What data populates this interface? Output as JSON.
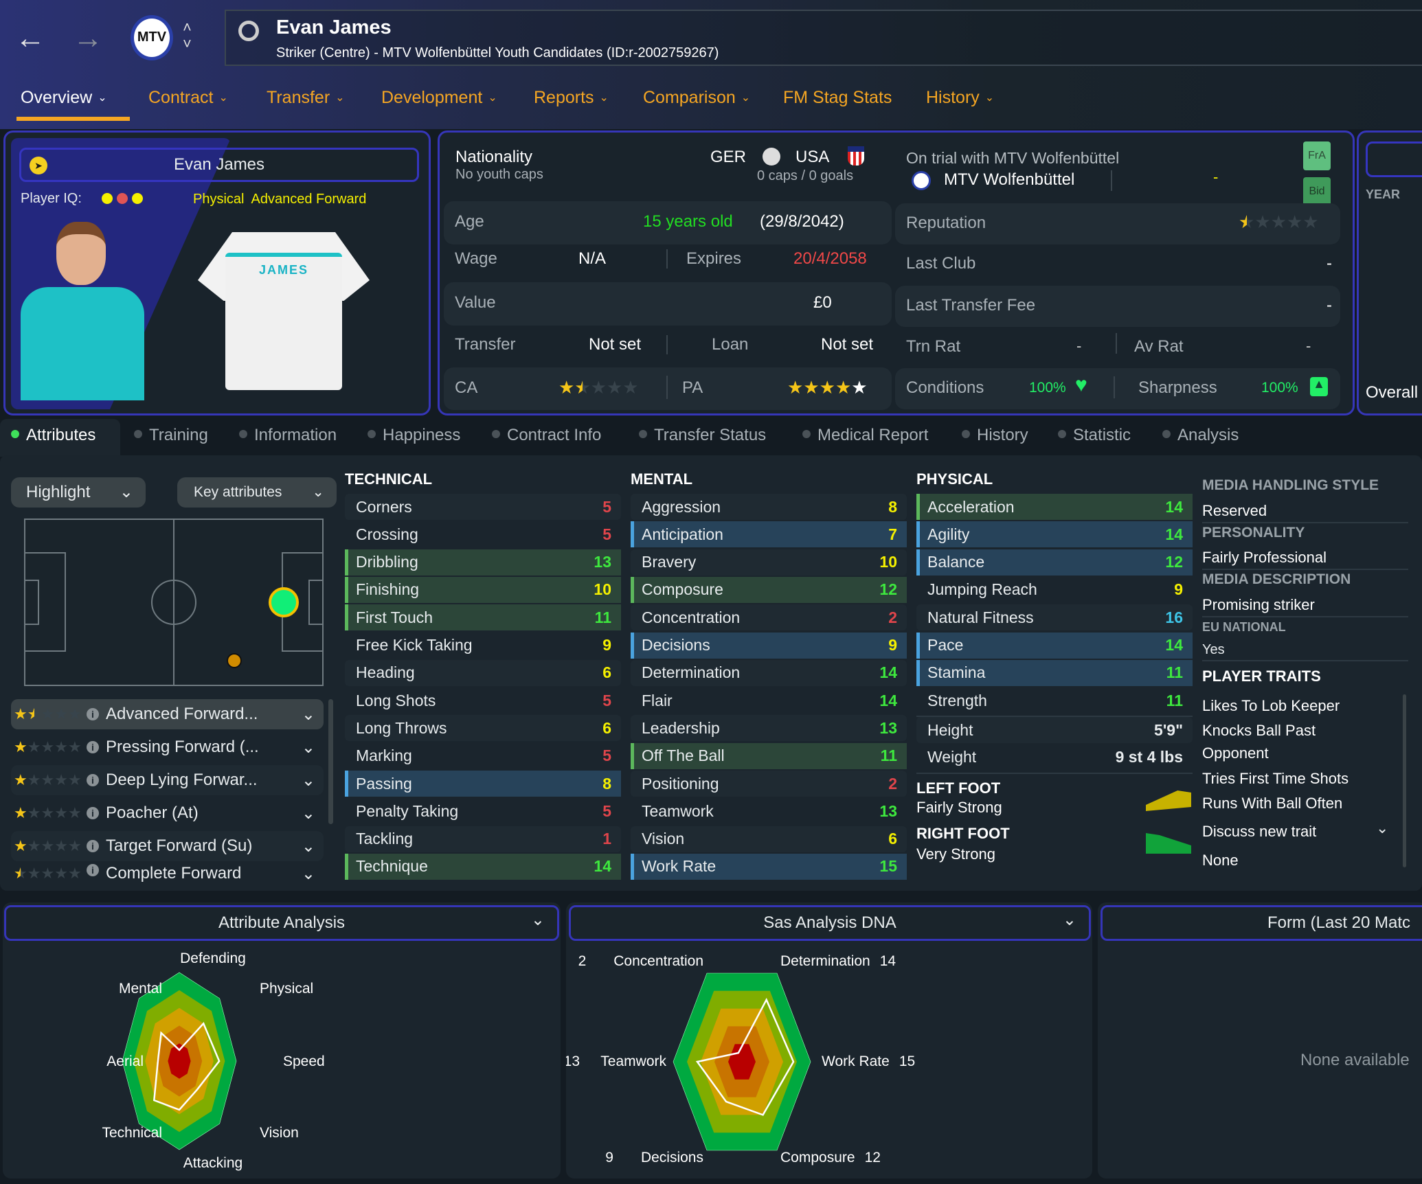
{
  "header": {
    "player_name": "Evan James",
    "subtitle": "Striker (Centre) - MTV Wolfenbüttel Youth Candidates (ID:r-2002759267)",
    "icons": [
      "back-arrow-icon",
      "forward-arrow-icon",
      "club-crest-icon",
      "up-down-chevron-icon",
      "search-icon"
    ]
  },
  "main_tabs": [
    {
      "label": "Overview",
      "active": true,
      "dropdown": true
    },
    {
      "label": "Contract",
      "dropdown": true
    },
    {
      "label": "Transfer",
      "dropdown": true
    },
    {
      "label": "Development",
      "dropdown": true
    },
    {
      "label": "Reports",
      "dropdown": true
    },
    {
      "label": "Comparison",
      "dropdown": true
    },
    {
      "label": "FM Stag Stats",
      "dropdown": false
    },
    {
      "label": "History",
      "dropdown": true
    }
  ],
  "profile": {
    "name": "Evan James",
    "player_iq_label": "Player IQ:",
    "player_iq_dots": [
      "#f5f000",
      "#e05555",
      "#f5f000"
    ],
    "role_label": "Physical  Advanced Forward",
    "shirt_name": "JAMES"
  },
  "details": {
    "nationality_label": "Nationality",
    "youth_caps": "No youth caps",
    "nation1": "GER",
    "nation2": "USA",
    "caps": "0 caps / 0 goals",
    "age_label": "Age",
    "age": "15 years old",
    "dob": "(29/8/2042)",
    "wage_label": "Wage",
    "wage": "N/A",
    "expires_label": "Expires",
    "expires": "20/4/2058",
    "value_label": "Value",
    "value": "£0",
    "transfer_label": "Transfer",
    "transfer": "Not set",
    "loan_label": "Loan",
    "loan": "Not set",
    "ca_label": "CA",
    "ca_stars": 1.5,
    "pa_label": "PA",
    "pa_stars": 4.5
  },
  "club": {
    "trial_text": "On trial with MTV Wolfenbüttel",
    "club_name": "MTV Wolfenbüttel",
    "club_dash": "-",
    "fra_button": "FrA",
    "bid_button": "Bid",
    "reputation_label": "Reputation",
    "reputation_stars": 0.5,
    "last_club_label": "Last Club",
    "last_club": "-",
    "last_fee_label": "Last Transfer Fee",
    "last_fee": "-",
    "trn_rat_label": "Trn Rat",
    "trn_rat": "-",
    "av_rat_label": "Av Rat",
    "av_rat": "-",
    "conditions_label": "Conditions",
    "conditions": "100%",
    "sharpness_label": "Sharpness",
    "sharpness": "100%"
  },
  "side_panel": {
    "year_label": "YEAR",
    "overall_label": "Overall"
  },
  "sub_tabs": [
    "Attributes",
    "Training",
    "Information",
    "Happiness",
    "Contract Info",
    "Transfer Status",
    "Medical Report",
    "History",
    "Statistic",
    "Analysis"
  ],
  "attributes_view": {
    "highlight_label": "Highlight",
    "key_attributes_label": "Key attributes",
    "roles": [
      {
        "name": "Advanced Forward...",
        "stars": 1.5
      },
      {
        "name": "Pressing Forward (...",
        "stars": 1
      },
      {
        "name": "Deep Lying Forwar...",
        "stars": 1
      },
      {
        "name": "Poacher (At)",
        "stars": 1
      },
      {
        "name": "Target Forward (Su)",
        "stars": 1
      },
      {
        "name": "Complete Forward",
        "stars": 0.5
      }
    ]
  },
  "technical": {
    "title": "TECHNICAL",
    "rows": [
      {
        "name": "Corners",
        "value": 5
      },
      {
        "name": "Crossing",
        "value": 5
      },
      {
        "name": "Dribbling",
        "value": 13,
        "hl": "g"
      },
      {
        "name": "Finishing",
        "value": 10,
        "hl": "g"
      },
      {
        "name": "First Touch",
        "value": 11,
        "hl": "g"
      },
      {
        "name": "Free Kick Taking",
        "value": 9
      },
      {
        "name": "Heading",
        "value": 6
      },
      {
        "name": "Long Shots",
        "value": 5
      },
      {
        "name": "Long Throws",
        "value": 6
      },
      {
        "name": "Marking",
        "value": 5
      },
      {
        "name": "Passing",
        "value": 8,
        "hl": "b"
      },
      {
        "name": "Penalty Taking",
        "value": 5
      },
      {
        "name": "Tackling",
        "value": 1
      },
      {
        "name": "Technique",
        "value": 14,
        "hl": "g"
      }
    ]
  },
  "mental": {
    "title": "MENTAL",
    "rows": [
      {
        "name": "Aggression",
        "value": 8
      },
      {
        "name": "Anticipation",
        "value": 7,
        "hl": "b"
      },
      {
        "name": "Bravery",
        "value": 10
      },
      {
        "name": "Composure",
        "value": 12,
        "hl": "g"
      },
      {
        "name": "Concentration",
        "value": 2
      },
      {
        "name": "Decisions",
        "value": 9,
        "hl": "b"
      },
      {
        "name": "Determination",
        "value": 14
      },
      {
        "name": "Flair",
        "value": 14
      },
      {
        "name": "Leadership",
        "value": 13
      },
      {
        "name": "Off The Ball",
        "value": 11,
        "hl": "g"
      },
      {
        "name": "Positioning",
        "value": 2
      },
      {
        "name": "Teamwork",
        "value": 13
      },
      {
        "name": "Vision",
        "value": 6
      },
      {
        "name": "Work Rate",
        "value": 15,
        "hl": "b"
      }
    ]
  },
  "physical": {
    "title": "PHYSICAL",
    "rows": [
      {
        "name": "Acceleration",
        "value": 14,
        "hl": "g"
      },
      {
        "name": "Agility",
        "value": 14,
        "hl": "b"
      },
      {
        "name": "Balance",
        "value": 12,
        "hl": "b"
      },
      {
        "name": "Jumping Reach",
        "value": 9
      },
      {
        "name": "Natural Fitness",
        "value": 16
      },
      {
        "name": "Pace",
        "value": 14,
        "hl": "b"
      },
      {
        "name": "Stamina",
        "value": 11,
        "hl": "b"
      },
      {
        "name": "Strength",
        "value": 11
      }
    ],
    "height_label": "Height",
    "height": "5'9\"",
    "weight_label": "Weight",
    "weight": "9 st 4 lbs",
    "left_foot_label": "LEFT FOOT",
    "left_foot": "Fairly Strong",
    "right_foot_label": "RIGHT FOOT",
    "right_foot": "Very Strong"
  },
  "info": {
    "media_style_label": "MEDIA HANDLING STYLE",
    "media_style": "Reserved",
    "personality_label": "PERSONALITY",
    "personality": "Fairly Professional",
    "media_desc_label": "MEDIA DESCRIPTION",
    "media_desc": "Promising striker",
    "eu_label": "EU NATIONAL",
    "eu": "Yes",
    "traits_label": "PLAYER TRAITS",
    "traits": [
      "Likes To Lob Keeper",
      "Knocks Ball Past",
      "Opponent",
      "Tries First Time Shots",
      "Runs With Ball Often"
    ],
    "discuss_label": "Discuss new trait",
    "discuss_value": "None"
  },
  "value_colors": {
    "low": "#e0454b",
    "mid": "#f5f000",
    "good": "#3ee83e",
    "high": "#3ec4e6"
  },
  "chart_data": [
    {
      "type": "radar",
      "title": "Attribute Analysis",
      "scale": [
        0,
        20
      ],
      "axes": [
        "Defending",
        "Physical",
        "Speed",
        "Vision",
        "Attacking",
        "Technical",
        "Aerial",
        "Mental"
      ],
      "values": [
        2.5,
        12,
        14,
        9,
        11,
        12.5,
        7.5,
        9
      ],
      "bands": [
        "#b80000",
        "#c87400",
        "#d0a000",
        "#80ad00",
        "#00a940"
      ]
    },
    {
      "type": "radar",
      "title": "Sas Analysis DNA",
      "scale": [
        0,
        20
      ],
      "axes": [
        "Concentration",
        "Determination",
        "Work Rate",
        "Composure",
        "Decisions",
        "Teamwork"
      ],
      "values": [
        2,
        14,
        15,
        12,
        9,
        13
      ],
      "bands": [
        "#b80000",
        "#c87400",
        "#d0a000",
        "#80ad00",
        "#00a940"
      ]
    }
  ],
  "form_panel": {
    "title": "Form (Last 20 Matc",
    "empty": "None available"
  }
}
